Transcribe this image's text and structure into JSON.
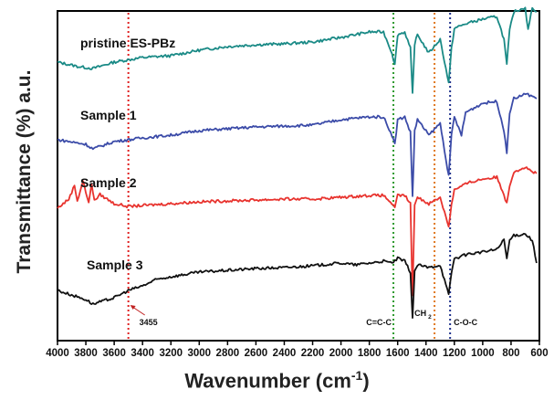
{
  "chart_data": {
    "type": "line",
    "xlabel": "Wavenumber",
    "xlabel_unit_prefix": "(cm",
    "xlabel_unit_exp": "-1",
    "xlabel_unit_suffix": ")",
    "ylabel": "Transmittance (%) a.u.",
    "xlim": [
      4000,
      600
    ],
    "x_reversed": true,
    "xticks": [
      4000,
      3800,
      3600,
      3400,
      3200,
      3000,
      2800,
      2600,
      2400,
      2200,
      2000,
      1800,
      1600,
      1400,
      1200,
      1000,
      800,
      600
    ],
    "y_ticks_shown": false,
    "grid": false,
    "series": [
      {
        "name": "pristine ES-PBz",
        "color": "#1a8a86",
        "offset": 310,
        "points": [
          [
            4000,
            -5
          ],
          [
            3850,
            -10
          ],
          [
            3750,
            -12
          ],
          [
            3600,
            -5
          ],
          [
            3400,
            0
          ],
          [
            3200,
            2
          ],
          [
            3000,
            8
          ],
          [
            2800,
            12
          ],
          [
            2600,
            14
          ],
          [
            2400,
            15
          ],
          [
            2200,
            17
          ],
          [
            2000,
            22
          ],
          [
            1900,
            25
          ],
          [
            1800,
            28
          ],
          [
            1700,
            28
          ],
          [
            1640,
            5
          ],
          [
            1620,
            -8
          ],
          [
            1600,
            25
          ],
          [
            1550,
            28
          ],
          [
            1510,
            10
          ],
          [
            1495,
            -40
          ],
          [
            1480,
            15
          ],
          [
            1460,
            25
          ],
          [
            1380,
            5
          ],
          [
            1300,
            20
          ],
          [
            1240,
            -28
          ],
          [
            1220,
            10
          ],
          [
            1200,
            32
          ],
          [
            1100,
            38
          ],
          [
            1000,
            42
          ],
          [
            900,
            45
          ],
          [
            850,
            20
          ],
          [
            830,
            -8
          ],
          [
            810,
            30
          ],
          [
            780,
            50
          ],
          [
            700,
            55
          ],
          [
            680,
            30
          ],
          [
            650,
            55
          ],
          [
            620,
            50
          ]
        ]
      },
      {
        "name": "Sample 1",
        "color": "#3b4ba8",
        "offset": 220,
        "points": [
          [
            4000,
            0
          ],
          [
            3800,
            -5
          ],
          [
            3750,
            -10
          ],
          [
            3600,
            -2
          ],
          [
            3400,
            2
          ],
          [
            3200,
            5
          ],
          [
            3000,
            10
          ],
          [
            2800,
            12
          ],
          [
            2600,
            14
          ],
          [
            2400,
            15
          ],
          [
            2200,
            16
          ],
          [
            2000,
            22
          ],
          [
            1800,
            25
          ],
          [
            1700,
            25
          ],
          [
            1640,
            5
          ],
          [
            1620,
            -5
          ],
          [
            1600,
            22
          ],
          [
            1550,
            25
          ],
          [
            1510,
            8
          ],
          [
            1495,
            -62
          ],
          [
            1480,
            10
          ],
          [
            1460,
            22
          ],
          [
            1380,
            5
          ],
          [
            1300,
            18
          ],
          [
            1240,
            -40
          ],
          [
            1220,
            5
          ],
          [
            1200,
            25
          ],
          [
            1150,
            5
          ],
          [
            1120,
            30
          ],
          [
            1000,
            40
          ],
          [
            900,
            42
          ],
          [
            850,
            10
          ],
          [
            830,
            -15
          ],
          [
            810,
            30
          ],
          [
            780,
            45
          ],
          [
            700,
            50
          ],
          [
            650,
            48
          ],
          [
            620,
            45
          ]
        ]
      },
      {
        "name": "Sample 2",
        "color": "#e8332e",
        "offset": 145,
        "points": [
          [
            4000,
            0
          ],
          [
            3920,
            10
          ],
          [
            3880,
            25
          ],
          [
            3860,
            8
          ],
          [
            3820,
            30
          ],
          [
            3780,
            5
          ],
          [
            3760,
            28
          ],
          [
            3740,
            8
          ],
          [
            3700,
            15
          ],
          [
            3600,
            5
          ],
          [
            3500,
            2
          ],
          [
            3400,
            3
          ],
          [
            3200,
            5
          ],
          [
            3000,
            7
          ],
          [
            2800,
            8
          ],
          [
            2600,
            9
          ],
          [
            2400,
            10
          ],
          [
            2200,
            10
          ],
          [
            2000,
            12
          ],
          [
            1800,
            14
          ],
          [
            1700,
            14
          ],
          [
            1640,
            5
          ],
          [
            1620,
            0
          ],
          [
            1600,
            14
          ],
          [
            1550,
            14
          ],
          [
            1510,
            5
          ],
          [
            1495,
            -95
          ],
          [
            1480,
            5
          ],
          [
            1460,
            12
          ],
          [
            1380,
            5
          ],
          [
            1300,
            12
          ],
          [
            1240,
            -20
          ],
          [
            1220,
            5
          ],
          [
            1200,
            20
          ],
          [
            1100,
            28
          ],
          [
            1000,
            32
          ],
          [
            900,
            34
          ],
          [
            850,
            15
          ],
          [
            830,
            5
          ],
          [
            810,
            25
          ],
          [
            780,
            40
          ],
          [
            700,
            45
          ],
          [
            650,
            40
          ],
          [
            620,
            38
          ]
        ]
      },
      {
        "name": "Sample 3",
        "color": "#111111",
        "offset": 55,
        "points": [
          [
            4000,
            0
          ],
          [
            3900,
            -5
          ],
          [
            3800,
            -10
          ],
          [
            3750,
            -15
          ],
          [
            3600,
            -8
          ],
          [
            3500,
            0
          ],
          [
            3400,
            5
          ],
          [
            3300,
            12
          ],
          [
            3200,
            15
          ],
          [
            3000,
            20
          ],
          [
            2800,
            22
          ],
          [
            2600,
            24
          ],
          [
            2400,
            25
          ],
          [
            2200,
            27
          ],
          [
            2000,
            30
          ],
          [
            1900,
            28
          ],
          [
            1800,
            30
          ],
          [
            1700,
            32
          ],
          [
            1640,
            30
          ],
          [
            1600,
            35
          ],
          [
            1550,
            32
          ],
          [
            1510,
            20
          ],
          [
            1495,
            -30
          ],
          [
            1480,
            20
          ],
          [
            1460,
            28
          ],
          [
            1380,
            25
          ],
          [
            1300,
            28
          ],
          [
            1240,
            -5
          ],
          [
            1220,
            20
          ],
          [
            1200,
            35
          ],
          [
            1100,
            40
          ],
          [
            1000,
            42
          ],
          [
            900,
            45
          ],
          [
            850,
            55
          ],
          [
            830,
            35
          ],
          [
            810,
            55
          ],
          [
            780,
            60
          ],
          [
            700,
            62
          ],
          [
            650,
            55
          ],
          [
            620,
            30
          ]
        ]
      }
    ],
    "vlines": [
      {
        "x": 3500,
        "color": "#e02020",
        "label": "3455"
      },
      {
        "x": 1630,
        "color": "#2e9a2e",
        "label": "C=C-C"
      },
      {
        "x": 1340,
        "color": "#e07820",
        "label": "CH",
        "sub": "2"
      },
      {
        "x": 1230,
        "color": "#1c2f8a",
        "label": "C-O-C"
      }
    ]
  }
}
